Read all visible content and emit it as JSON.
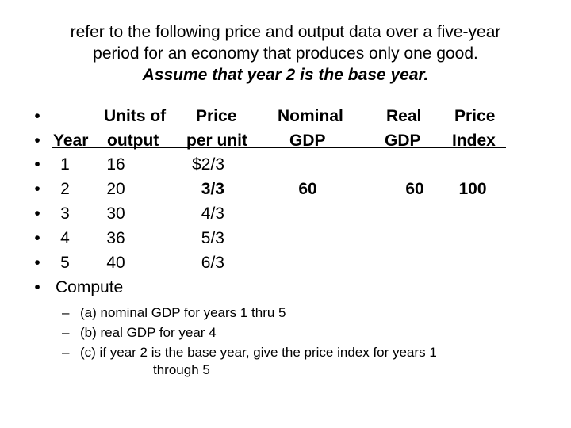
{
  "glyphs": {
    "bullet": "•",
    "dash": "–"
  },
  "title": {
    "line1": "refer to the following price and output data over a five-year",
    "line2": "period for an economy that produces only one good.",
    "line3": "Assume that year 2 is the base year."
  },
  "table": {
    "header1": {
      "units_of": "Units of",
      "price": "Price",
      "nominal": "Nominal",
      "real": "Real",
      "price_index": "Price"
    },
    "header2": {
      "year": "Year",
      "output": "output",
      "per_unit": "per unit",
      "nominal_gdp": "GDP",
      "real_gdp": "GDP",
      "index": "Index"
    },
    "rows": [
      {
        "year": "1",
        "output": "16",
        "price_per_unit": "$2/3",
        "nominal_gdp": "",
        "real_gdp": "",
        "price_index": ""
      },
      {
        "year": "2",
        "output": "20",
        "price_per_unit": "3/3",
        "nominal_gdp": "60",
        "real_gdp": "60",
        "price_index": "100"
      },
      {
        "year": "3",
        "output": "30",
        "price_per_unit": "4/3",
        "nominal_gdp": "",
        "real_gdp": "",
        "price_index": ""
      },
      {
        "year": "4",
        "output": "36",
        "price_per_unit": "5/3",
        "nominal_gdp": "",
        "real_gdp": "",
        "price_index": ""
      },
      {
        "year": "5",
        "output": "40",
        "price_per_unit": "6/3",
        "nominal_gdp": "",
        "real_gdp": "",
        "price_index": ""
      }
    ],
    "compute": "Compute"
  },
  "questions": {
    "a": "(a) nominal GDP for years 1 thru 5",
    "b": "(b) real GDP for year 4",
    "c": "(c) if year 2 is the base year, give the price index for years 1",
    "c_cont": "through 5"
  }
}
